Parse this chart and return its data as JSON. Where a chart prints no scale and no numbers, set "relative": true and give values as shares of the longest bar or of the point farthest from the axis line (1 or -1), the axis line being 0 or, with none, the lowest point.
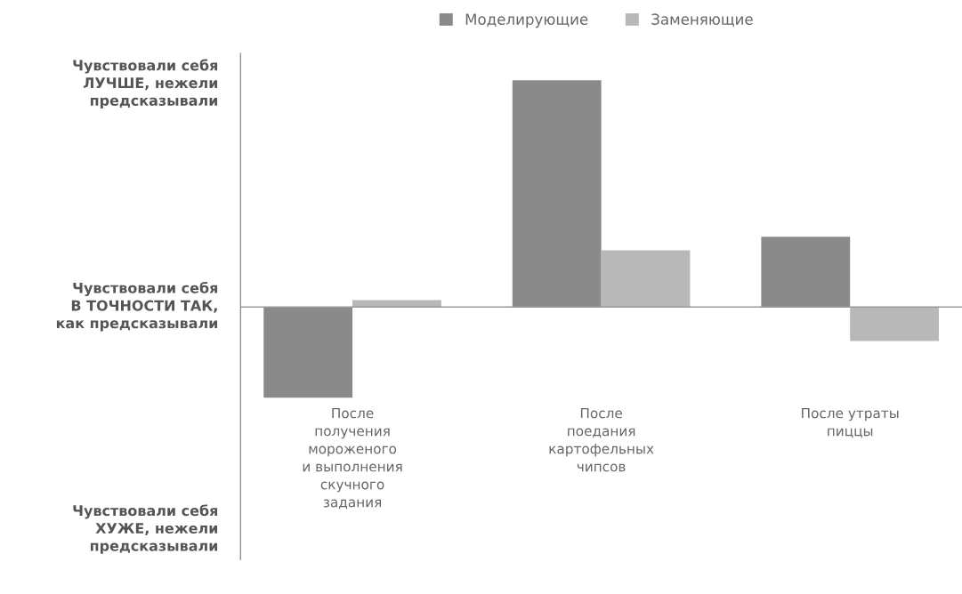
{
  "chart_data": {
    "type": "bar",
    "relative": true,
    "categories": [
      "После\nполучения\nмороженого\nи выполнения\nскучного\nзадания",
      "После\nпоедания\nкартофельных\nчипсов",
      "После утраты\nпиццы"
    ],
    "series": [
      {
        "name": "Моделирующие",
        "color": "#8a8a8a",
        "values": [
          -0.4,
          1,
          0.31
        ]
      },
      {
        "name": "Заменяющие",
        "color": "#b8b8b8",
        "values": [
          0.03,
          0.25,
          -0.15
        ]
      }
    ],
    "annotations": [
      "Чувствовали себя\nЛУЧШЕ, нежели\nпредсказывали",
      "Чувствовали себя\nВ ТОЧНОСТИ ТАК,\nкак предсказывали",
      "Чувствовали себя\nХУЖЕ, нежели\nпредсказывали"
    ],
    "legend": "top"
  }
}
